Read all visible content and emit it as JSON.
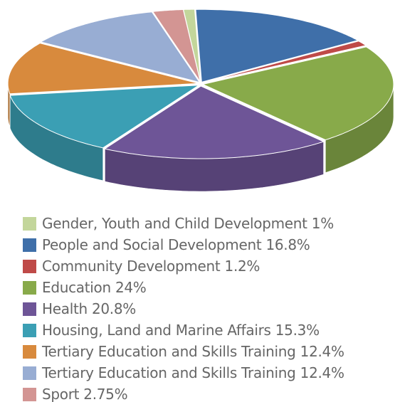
{
  "chart_data": {
    "type": "pie3d",
    "categories": [
      "Gender, Youth and Child Development",
      "People and Social Development",
      "Community Development",
      "Education",
      "Health",
      "Housing, Land and Marine Affairs",
      "Tertiary Education and Skills Training",
      "Tertiary Education and Skills Training",
      "Sport"
    ],
    "values": [
      1,
      16.8,
      1.2,
      24,
      20.8,
      15.3,
      12.4,
      12.4,
      2.75
    ],
    "value_labels": [
      "1%",
      "16.8%",
      "1.2%",
      "24%",
      "20.8%",
      "15.3%",
      "12.4%",
      "12.4%",
      "2.75%"
    ],
    "colors": [
      "#c3d69b",
      "#3f6fa9",
      "#bf4a48",
      "#88aa4a",
      "#6e5597",
      "#3b9fb4",
      "#d88a3d",
      "#98add3",
      "#d39593"
    ]
  }
}
